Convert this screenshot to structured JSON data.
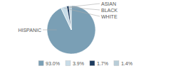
{
  "chart_data": {
    "type": "pie",
    "categories": [
      "HISPANIC",
      "WHITE",
      "BLACK",
      "ASIAN"
    ],
    "values": [
      93.0,
      3.9,
      1.7,
      1.4
    ],
    "value_labels": [
      "93.0%",
      "3.9%",
      "1.7%",
      "1.4%"
    ],
    "colors": [
      "#7a9fb5",
      "#c8dce8",
      "#1c3a5e",
      "#b8cdd8"
    ],
    "legend": "bottom"
  }
}
